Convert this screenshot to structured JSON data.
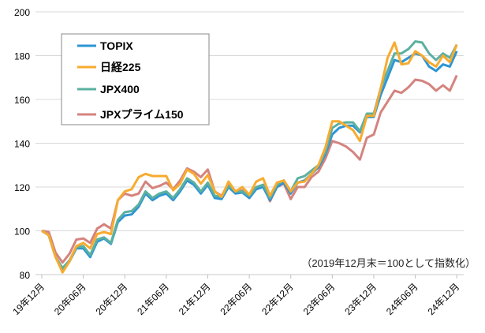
{
  "chart_data": {
    "type": "line",
    "title": "",
    "xlabel": "",
    "ylabel": "",
    "ylim": [
      80,
      200
    ],
    "yticks": [
      "80",
      "100",
      "120",
      "140",
      "160",
      "180",
      "200"
    ],
    "grid": true,
    "legend_position": "top-left",
    "note": "（2019年12月末＝100として指数化）",
    "x_tick_labels": [
      "19年12月",
      "20年06月",
      "20年12月",
      "21年06月",
      "21年12月",
      "22年06月",
      "22年12月",
      "23年06月",
      "23年12月",
      "24年06月",
      "24年12月"
    ],
    "x_tick_every_months": 6,
    "x_start": "2019-12",
    "x_end": "2024-12",
    "series": [
      {
        "name": "TOPIX",
        "color": "#2e95d3",
        "values": [
          100,
          98,
          88,
          82,
          86,
          92,
          92,
          88,
          95,
          96.5,
          94,
          104,
          107,
          107.5,
          111,
          117,
          114,
          116,
          117,
          114,
          118,
          123,
          121,
          117,
          121,
          115,
          114.5,
          120,
          117,
          117.5,
          115,
          119,
          120,
          114,
          120,
          122,
          117,
          122,
          123,
          126,
          129,
          135,
          144,
          147,
          148,
          148,
          145,
          152,
          152,
          162,
          170,
          178,
          177,
          179,
          181,
          180,
          175,
          173,
          176,
          175,
          182
        ]
      },
      {
        "name": "日経225",
        "color": "#f7ab2f",
        "values": [
          100,
          98,
          88,
          81,
          86,
          93,
          94.5,
          92,
          98.5,
          99.5,
          98.5,
          114,
          118,
          119,
          124.5,
          126,
          125,
          125,
          125,
          118.5,
          121.5,
          128,
          126,
          121.5,
          125.5,
          118,
          115.5,
          122.5,
          118,
          120,
          116.5,
          122.5,
          124,
          116,
          122,
          123,
          118,
          122,
          122.5,
          126,
          130,
          138,
          150,
          150,
          148,
          146,
          141,
          152.5,
          152.5,
          165,
          179,
          186,
          176,
          176.5,
          182,
          180,
          177,
          175,
          180,
          177,
          185
        ]
      },
      {
        "name": "JPX400",
        "color": "#5bb0a0",
        "values": [
          100,
          98,
          88,
          83,
          86.5,
          92.5,
          93,
          89,
          96,
          97,
          94.5,
          105,
          108.5,
          109,
          112,
          118,
          115,
          117,
          118,
          115,
          119,
          124,
          122,
          118,
          122,
          116,
          115.5,
          120.5,
          118,
          118,
          116,
          120,
          121,
          115,
          121,
          123,
          118,
          124,
          125,
          127.5,
          130,
          136,
          147,
          149,
          149.5,
          149.5,
          145.5,
          153.5,
          153.5,
          165,
          173,
          181,
          181,
          183,
          186.5,
          186,
          181,
          178,
          181,
          179,
          185
        ]
      },
      {
        "name": "JPXプライム150",
        "color": "#d4837e",
        "values": [
          100,
          99.5,
          90,
          85.5,
          89.5,
          96,
          96.5,
          94.5,
          101,
          103,
          101,
          114,
          117,
          116,
          117,
          122.5,
          119.5,
          120.5,
          122,
          119,
          123,
          128.5,
          127,
          124.5,
          128,
          118,
          116,
          121.5,
          118,
          118.5,
          115,
          119.5,
          121,
          113.5,
          120,
          121.5,
          114.5,
          120,
          120,
          124.5,
          127,
          133,
          141,
          140,
          138.5,
          136,
          132.5,
          142.5,
          144,
          154,
          159,
          164,
          163,
          165.5,
          169,
          168.5,
          167,
          164,
          166.5,
          164,
          171
        ]
      }
    ]
  }
}
